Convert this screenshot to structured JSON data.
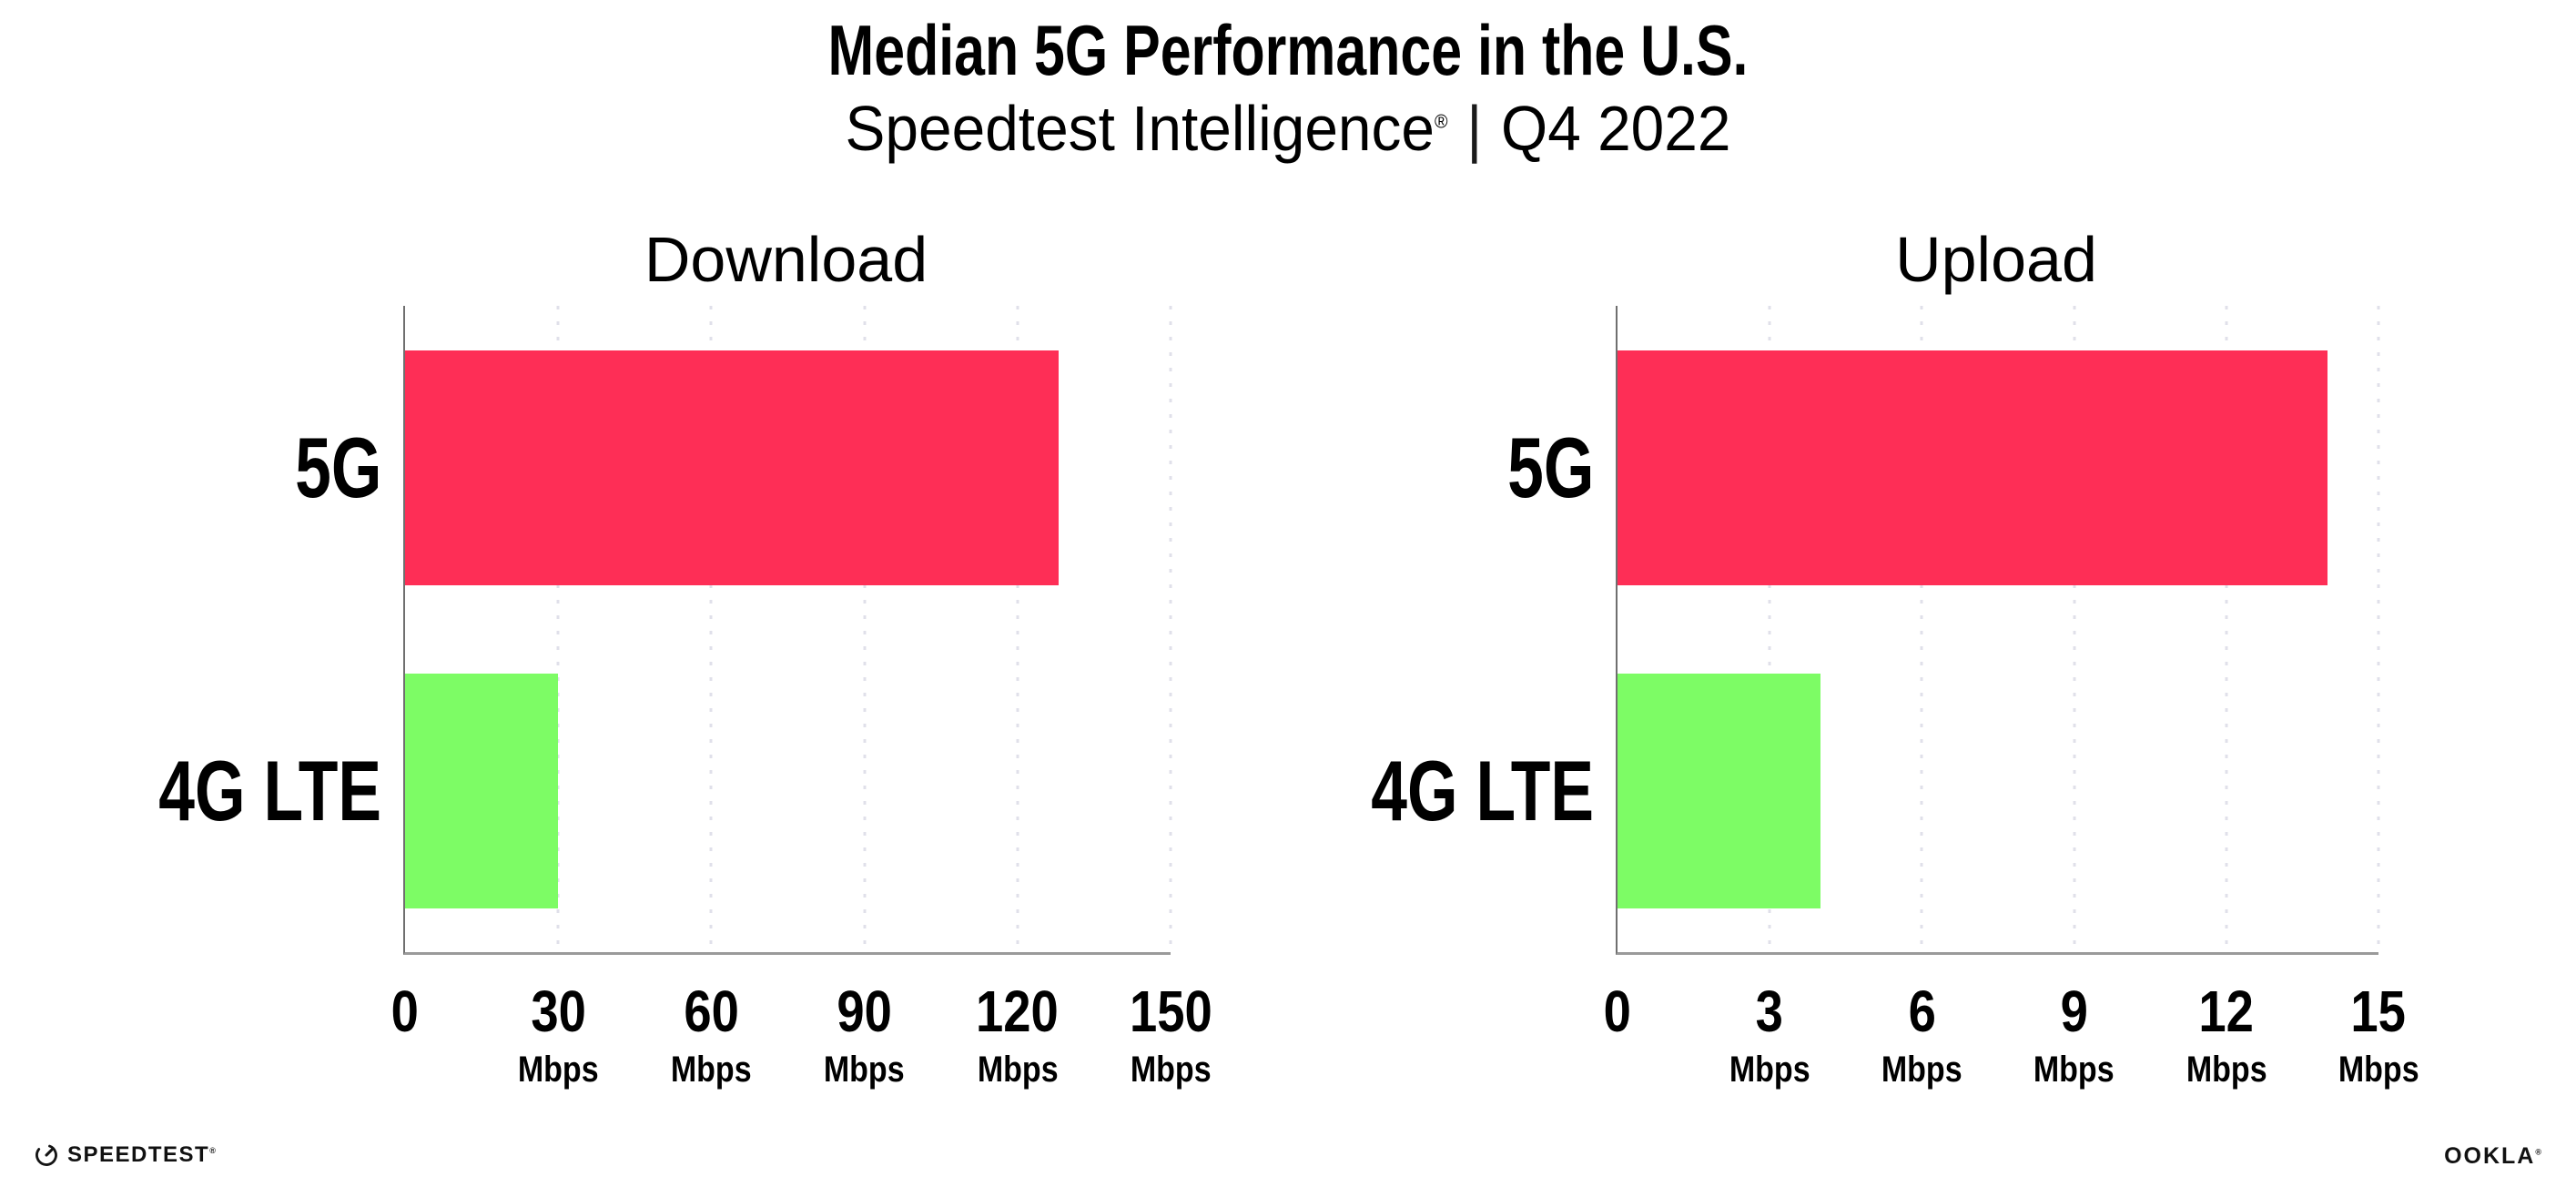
{
  "header": {
    "title": "Median 5G Performance in the U.S.",
    "subtitle": {
      "brand": "Speedtest Intelligence",
      "registered": "®",
      "separator": "|",
      "period": "Q4 2022"
    }
  },
  "colors": {
    "bar_5g": "#fe2e56",
    "bar_4g": "#7dfc65",
    "axis_y": "#6f6f6f",
    "axis_x": "#9a9a9a",
    "grid_dots": "#e0e0ea",
    "ink": "#111111"
  },
  "chart_data": [
    {
      "type": "bar",
      "orientation": "horizontal",
      "title": "Download",
      "categories": [
        "5G",
        "4G LTE"
      ],
      "values": [
        128,
        30
      ],
      "unit": "Mbps",
      "xlabel": "",
      "ylabel": "",
      "xlim": [
        0,
        150
      ],
      "ticks": [
        0,
        30,
        60,
        90,
        120,
        150
      ],
      "bar_colors": [
        "#fe2e56",
        "#7dfc65"
      ],
      "grid": "vertical-dotted",
      "legend": "none",
      "value_labels_shown": false
    },
    {
      "type": "bar",
      "orientation": "horizontal",
      "title": "Upload",
      "categories": [
        "5G",
        "4G LTE"
      ],
      "values": [
        14,
        4
      ],
      "unit": "Mbps",
      "xlabel": "",
      "ylabel": "",
      "xlim": [
        0,
        15
      ],
      "ticks": [
        0,
        3,
        6,
        9,
        12,
        15
      ],
      "bar_colors": [
        "#fe2e56",
        "#7dfc65"
      ],
      "grid": "vertical-dotted",
      "legend": "none",
      "value_labels_shown": false
    }
  ],
  "footer": {
    "speedtest": {
      "label": "SPEEDTEST",
      "mark": "®"
    },
    "ookla": {
      "label": "OOKLA",
      "mark": "®"
    }
  }
}
